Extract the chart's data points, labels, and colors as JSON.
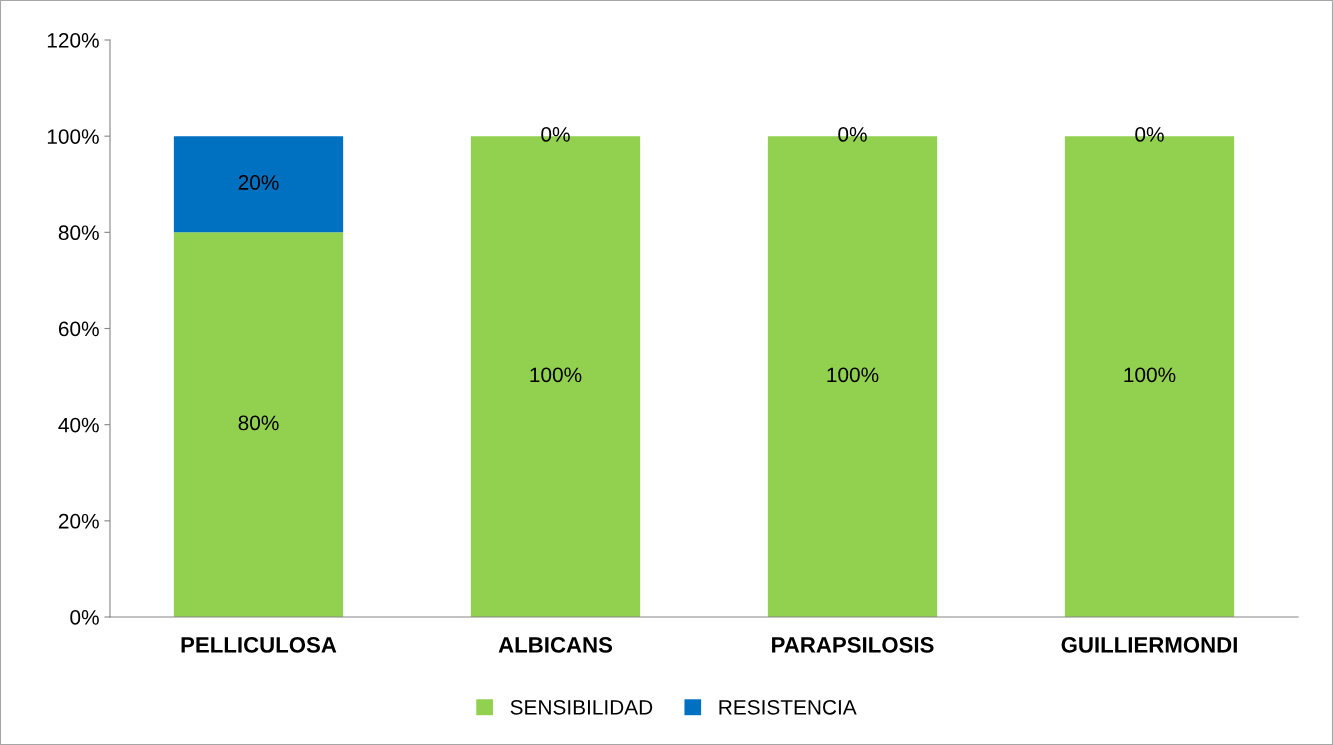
{
  "chart_data": {
    "type": "bar",
    "stacked": true,
    "categories": [
      "PELLICULOSA",
      "ALBICANS",
      "PARAPSILOSIS",
      "GUILLIERMONDI"
    ],
    "series": [
      {
        "name": "SENSIBILIDAD",
        "color": "#92d050",
        "values": [
          80,
          100,
          100,
          100
        ],
        "value_labels": [
          "80%",
          "100%",
          "100%",
          "100%"
        ]
      },
      {
        "name": "RESISTENCIA",
        "color": "#0070c0",
        "values": [
          20,
          0,
          0,
          0
        ],
        "value_labels": [
          "20%",
          "0%",
          "0%",
          "0%"
        ]
      }
    ],
    "ylim": [
      0,
      120
    ],
    "yticks": [
      {
        "value": 0,
        "label": "0%"
      },
      {
        "value": 20,
        "label": "20%"
      },
      {
        "value": 40,
        "label": "40%"
      },
      {
        "value": 60,
        "label": "60%"
      },
      {
        "value": 80,
        "label": "80%"
      },
      {
        "value": 100,
        "label": "100%"
      },
      {
        "value": 120,
        "label": "120%"
      }
    ],
    "grid": false,
    "legend": "bottom"
  }
}
